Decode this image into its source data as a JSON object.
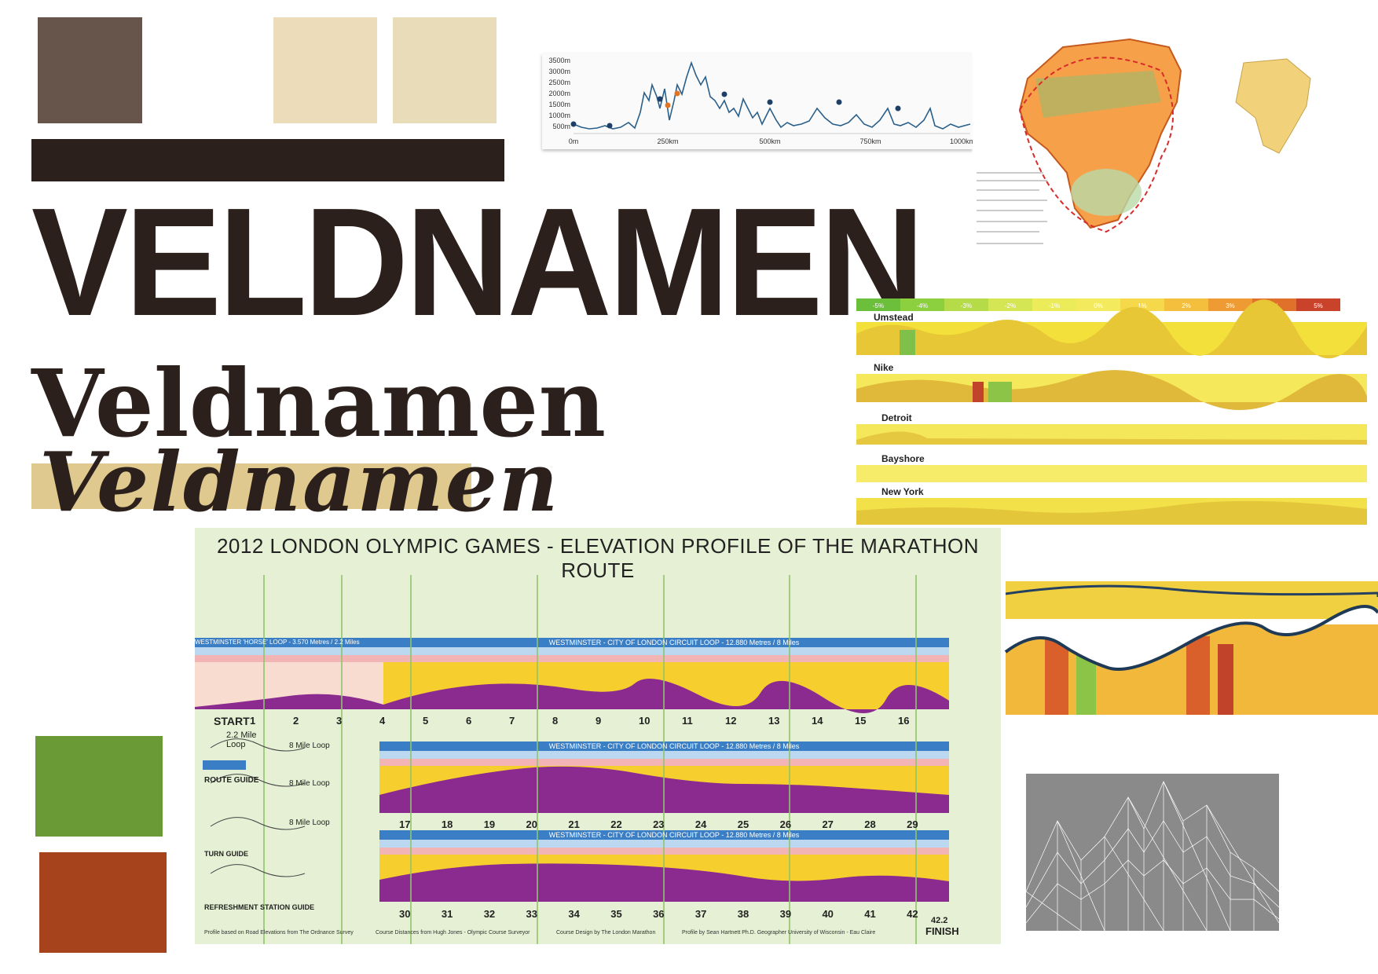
{
  "palette": {
    "swatches": [
      {
        "name": "dark-brown",
        "hex": "#67544a"
      },
      {
        "name": "light-beige-1",
        "hex": "#ecdcb9"
      },
      {
        "name": "light-beige-2",
        "hex": "#e9dcb9"
      },
      {
        "name": "green",
        "hex": "#6a9a35"
      },
      {
        "name": "rust",
        "hex": "#a6431c"
      }
    ],
    "bar_color": "#2b201b"
  },
  "titles": {
    "bold": "VELDNAMEN",
    "serif": "Veldnamen",
    "blackletter": "Veldnamen"
  },
  "elevation_chart": {
    "y_ticks": [
      "3500m",
      "3000m",
      "2500m",
      "2000m",
      "1500m",
      "1000m",
      "500m"
    ],
    "x_ticks": [
      "0m",
      "250km",
      "500km",
      "750km",
      "1000km"
    ]
  },
  "comparison_chart": {
    "grade_legend": [
      "-5%",
      "-4%",
      "-3%",
      "-2%",
      "-1%",
      "0%",
      "1%",
      "2%",
      "3%",
      "4%",
      "5%"
    ],
    "races": [
      "Umstead",
      "Nike",
      "Detroit",
      "Bayshore",
      "New York"
    ]
  },
  "marathon_poster": {
    "title": "2012 LONDON OLYMPIC GAMES - ELEVATION PROFILE OF THE MARATHON ROUTE",
    "start_label": "START",
    "finish_distance": "42.2",
    "finish_label": "FINISH",
    "row1_miles": [
      "1",
      "2",
      "3",
      "4",
      "5",
      "6",
      "7",
      "8",
      "9",
      "10",
      "11",
      "12",
      "13",
      "14",
      "15",
      "16"
    ],
    "row2_miles": [
      "17",
      "18",
      "19",
      "20",
      "21",
      "22",
      "23",
      "24",
      "25",
      "26",
      "27",
      "28",
      "29"
    ],
    "row3_miles": [
      "30",
      "31",
      "32",
      "33",
      "34",
      "35",
      "36",
      "37",
      "38",
      "39",
      "40",
      "41",
      "42"
    ],
    "row1_header": "WESTMINSTER - CITY OF LONDON CIRCUIT LOOP - 12.880 Metres / 8 Miles",
    "row1_left_header": "WESTMINSTER 'HORSE' LOOP - 3.570 Metres / 2.2 Miles",
    "row2_header": "WESTMINSTER - CITY OF LONDON CIRCUIT LOOP - 12.880 Metres / 8 Miles",
    "row3_header": "WESTMINSTER - CITY OF LONDON CIRCUIT LOOP - 12.880 Metres / 8 Miles",
    "side_labels": [
      "2.2 Mile Loop",
      "8 Mile Loop",
      "8 Mile Loop",
      "8 Mile Loop"
    ],
    "route_guide_title": "ROUTE GUIDE",
    "turn_guide_title": "TURN GUIDE",
    "refreshment_title": "REFRESHMENT STATION GUIDE",
    "footer_left": "Profile based on Road Elevations from The Ordnance Survey",
    "footer_mid": "Course Distances from Hugh Jones - Olympic Course Surveyor",
    "footer_mid2": "Course Design by The London Marathon",
    "footer_right": "Profile by Sean Hartnett Ph.D. Geographer University of Wisconsin - Eau Claire"
  }
}
